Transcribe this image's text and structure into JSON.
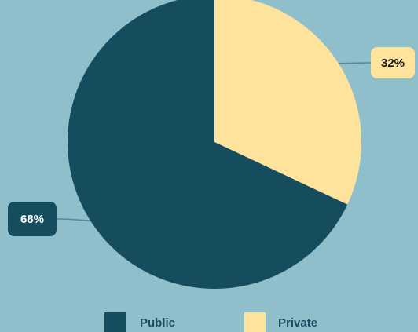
{
  "chart_data": {
    "type": "pie",
    "slices": [
      {
        "name": "Private",
        "value": 32,
        "label": "32%",
        "color": "#fde39c"
      },
      {
        "name": "Public",
        "value": 68,
        "label": "68%",
        "color": "#154c5e"
      }
    ],
    "legend": {
      "placement": "bottom",
      "items": [
        {
          "name": "Public",
          "color": "#154c5e"
        },
        {
          "name": "Private",
          "color": "#fde39c"
        }
      ]
    }
  },
  "colors": {
    "background": "#8fbfca",
    "leader_line": "#5a8795"
  }
}
